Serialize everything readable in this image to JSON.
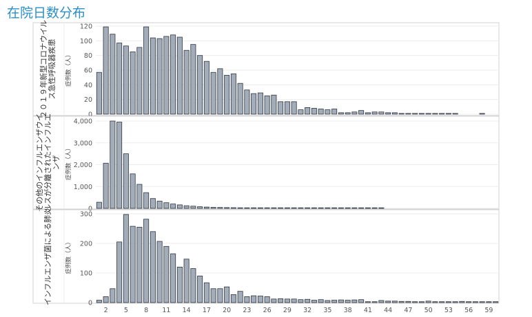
{
  "title": "在院日数分布",
  "x_tick_labels": [
    "2",
    "5",
    "8",
    "11",
    "14",
    "17",
    "20",
    "23",
    "26",
    "29",
    "32",
    "35",
    "38",
    "41",
    "44",
    "47",
    "50",
    "53",
    "56",
    "59"
  ],
  "chart_data": [
    {
      "type": "bar",
      "row_label_lines": [
        "２０１９年新型コロナウイル",
        "ス急性呼吸器疾患"
      ],
      "ylabel": "症例数（人）",
      "ylim": [
        0,
        125
      ],
      "yticks": [
        0,
        20,
        40,
        60,
        80,
        100,
        120
      ],
      "ytick_labels": [
        "0",
        "20",
        "40",
        "60",
        "80",
        "100",
        "120"
      ],
      "x": [
        1,
        2,
        3,
        4,
        5,
        6,
        7,
        8,
        9,
        10,
        11,
        12,
        13,
        14,
        15,
        16,
        17,
        18,
        19,
        20,
        21,
        22,
        23,
        24,
        25,
        26,
        27,
        28,
        29,
        30,
        31,
        32,
        33,
        34,
        35,
        36,
        37,
        38,
        39,
        40,
        41,
        42,
        43,
        44,
        45,
        46,
        47,
        48,
        49,
        50,
        51,
        52,
        53,
        54,
        55,
        56,
        57,
        58,
        59,
        60
      ],
      "values": [
        57,
        119,
        109,
        97,
        93,
        85,
        91,
        119,
        104,
        103,
        106,
        108,
        105,
        87,
        95,
        80,
        72,
        57,
        62,
        53,
        55,
        42,
        33,
        28,
        29,
        25,
        26,
        17,
        17,
        17,
        6,
        9,
        8,
        7,
        6,
        7,
        2,
        2,
        3,
        5,
        2,
        3,
        3,
        2,
        2,
        1,
        1,
        1,
        1,
        1,
        1,
        1,
        1,
        1,
        0,
        0,
        0,
        1,
        0,
        0
      ]
    },
    {
      "type": "bar",
      "row_label_lines": [
        "その他のインフルエンザウイ",
        "ルスが分離されたインフルエ",
        "ンザ"
      ],
      "ylabel": "症例数（人）",
      "ylim": [
        0,
        4100
      ],
      "yticks": [
        0,
        1000,
        2000,
        3000,
        4000
      ],
      "ytick_labels": [
        "0",
        "1,000",
        "2,000",
        "3,000",
        "4,000"
      ],
      "x": [
        1,
        2,
        3,
        4,
        5,
        6,
        7,
        8,
        9,
        10,
        11,
        12,
        13,
        14,
        15,
        16,
        17,
        18,
        19,
        20,
        21,
        22,
        23,
        24,
        25,
        26,
        27,
        28,
        29,
        30,
        31,
        32,
        33,
        34,
        35,
        36,
        37,
        38,
        39,
        40,
        41,
        42,
        43,
        44,
        45,
        46,
        47,
        48,
        49,
        50,
        51,
        52,
        53,
        54,
        55,
        56,
        57,
        58,
        59,
        60
      ],
      "values": [
        280,
        2070,
        4000,
        3950,
        2500,
        1580,
        1100,
        720,
        450,
        330,
        260,
        200,
        160,
        120,
        100,
        75,
        60,
        45,
        40,
        35,
        30,
        25,
        20,
        18,
        15,
        12,
        10,
        9,
        8,
        7,
        6,
        5,
        4,
        4,
        3,
        2,
        2,
        1,
        1,
        1,
        1,
        1,
        1,
        0,
        0,
        0,
        0,
        0,
        0,
        0,
        0,
        0,
        0,
        0,
        0,
        0,
        0,
        0,
        0,
        0
      ]
    },
    {
      "type": "bar",
      "row_label_lines": [
        "インフルエンザ菌による肺炎"
      ],
      "ylabel": "症例数（人）",
      "ylim": [
        0,
        305
      ],
      "yticks": [
        0,
        100,
        200,
        300
      ],
      "ytick_labels": [
        "0",
        "100",
        "200",
        "300"
      ],
      "x": [
        1,
        2,
        3,
        4,
        5,
        6,
        7,
        8,
        9,
        10,
        11,
        12,
        13,
        14,
        15,
        16,
        17,
        18,
        19,
        20,
        21,
        22,
        23,
        24,
        25,
        26,
        27,
        28,
        29,
        30,
        31,
        32,
        33,
        34,
        35,
        36,
        37,
        38,
        39,
        40,
        41,
        42,
        43,
        44,
        45,
        46,
        47,
        48,
        49,
        50,
        51,
        52,
        53,
        54,
        55,
        56,
        57,
        58,
        59,
        60
      ],
      "values": [
        8,
        20,
        47,
        205,
        298,
        258,
        255,
        282,
        240,
        207,
        190,
        165,
        120,
        147,
        115,
        90,
        67,
        47,
        47,
        53,
        27,
        38,
        20,
        23,
        22,
        20,
        12,
        13,
        12,
        12,
        10,
        11,
        8,
        10,
        7,
        8,
        9,
        8,
        9,
        10,
        3,
        3,
        7,
        5,
        5,
        4,
        4,
        3,
        3,
        5,
        3,
        3,
        3,
        3,
        4,
        3,
        3,
        3,
        3,
        3
      ]
    }
  ]
}
